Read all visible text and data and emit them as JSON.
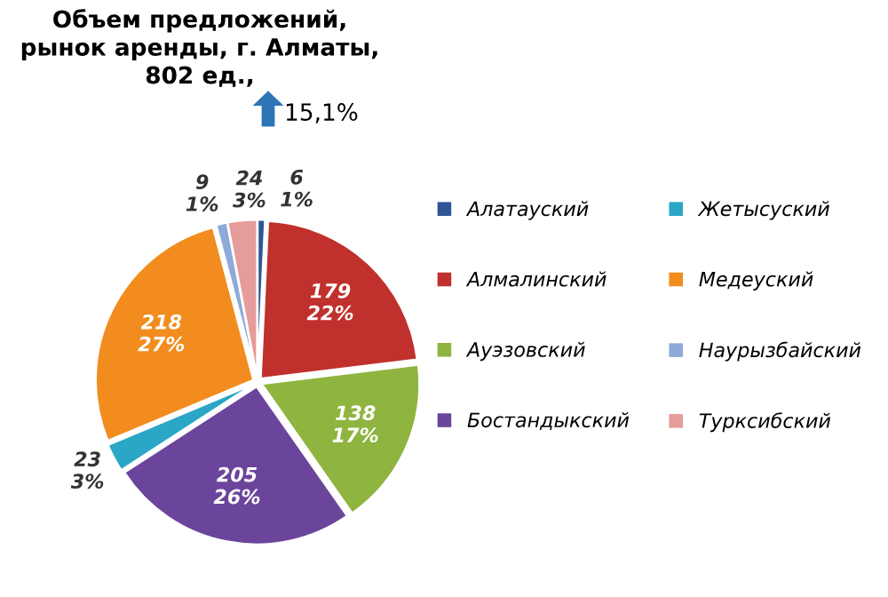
{
  "chart_data": {
    "type": "pie",
    "title": "Объем предложений,\nрынок аренды, г. Алматы,\n802 ед.,",
    "annotations": [
      "15,1%"
    ],
    "categories": [
      "Алатауский",
      "Алмалинский",
      "Ауэзовский",
      "Бостандыкский",
      "Жетысуский",
      "Медеуский",
      "Наурызбайский",
      "Турксибский"
    ],
    "values": [
      6,
      179,
      138,
      205,
      23,
      218,
      9,
      24
    ],
    "value_labels": [
      "6\n1%",
      "179\n22%",
      "138\n17%",
      "205\n26%",
      "23\n3%",
      "218\n27%",
      "9\n1%",
      "24\n3%"
    ],
    "colors": [
      "#2f5597",
      "#c0302c",
      "#8fb43f",
      "#6b459b",
      "#2aa6c6",
      "#f28c1e",
      "#8eaad9",
      "#e59c9a"
    ],
    "legend": "right"
  }
}
